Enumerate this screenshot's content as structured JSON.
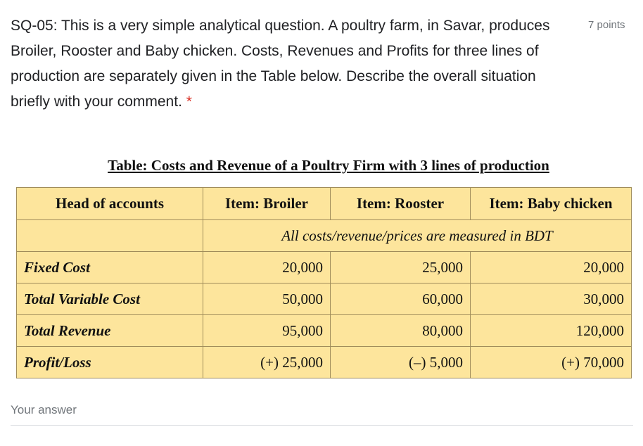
{
  "question": {
    "text": "SQ-05: This is a very simple analytical question. A poultry farm, in Savar, produces Broiler, Rooster and Baby chicken. Costs, Revenues and Profits for three lines of production are separately given in the Table below. Describe the overall situation briefly with your comment.",
    "required_mark": "*",
    "points": "7 points"
  },
  "table": {
    "title": "Table: Costs and Revenue of a Poultry Firm with 3 lines of production",
    "headers": [
      "Head of accounts",
      "Item: Broiler",
      "Item: Rooster",
      "Item: Baby chicken"
    ],
    "note": "All costs/revenue/prices are measured in BDT",
    "rows": [
      {
        "label": "Fixed Cost",
        "values": [
          "20,000",
          "25,000",
          "20,000"
        ]
      },
      {
        "label": "Total Variable Cost",
        "values": [
          "50,000",
          "60,000",
          "30,000"
        ]
      },
      {
        "label": "Total Revenue",
        "values": [
          "95,000",
          "80,000",
          "120,000"
        ]
      },
      {
        "label": "Profit/Loss",
        "values": [
          "(+) 25,000",
          "(–) 5,000",
          "(+) 70,000"
        ]
      }
    ]
  },
  "answer": {
    "placeholder": "Your answer"
  }
}
